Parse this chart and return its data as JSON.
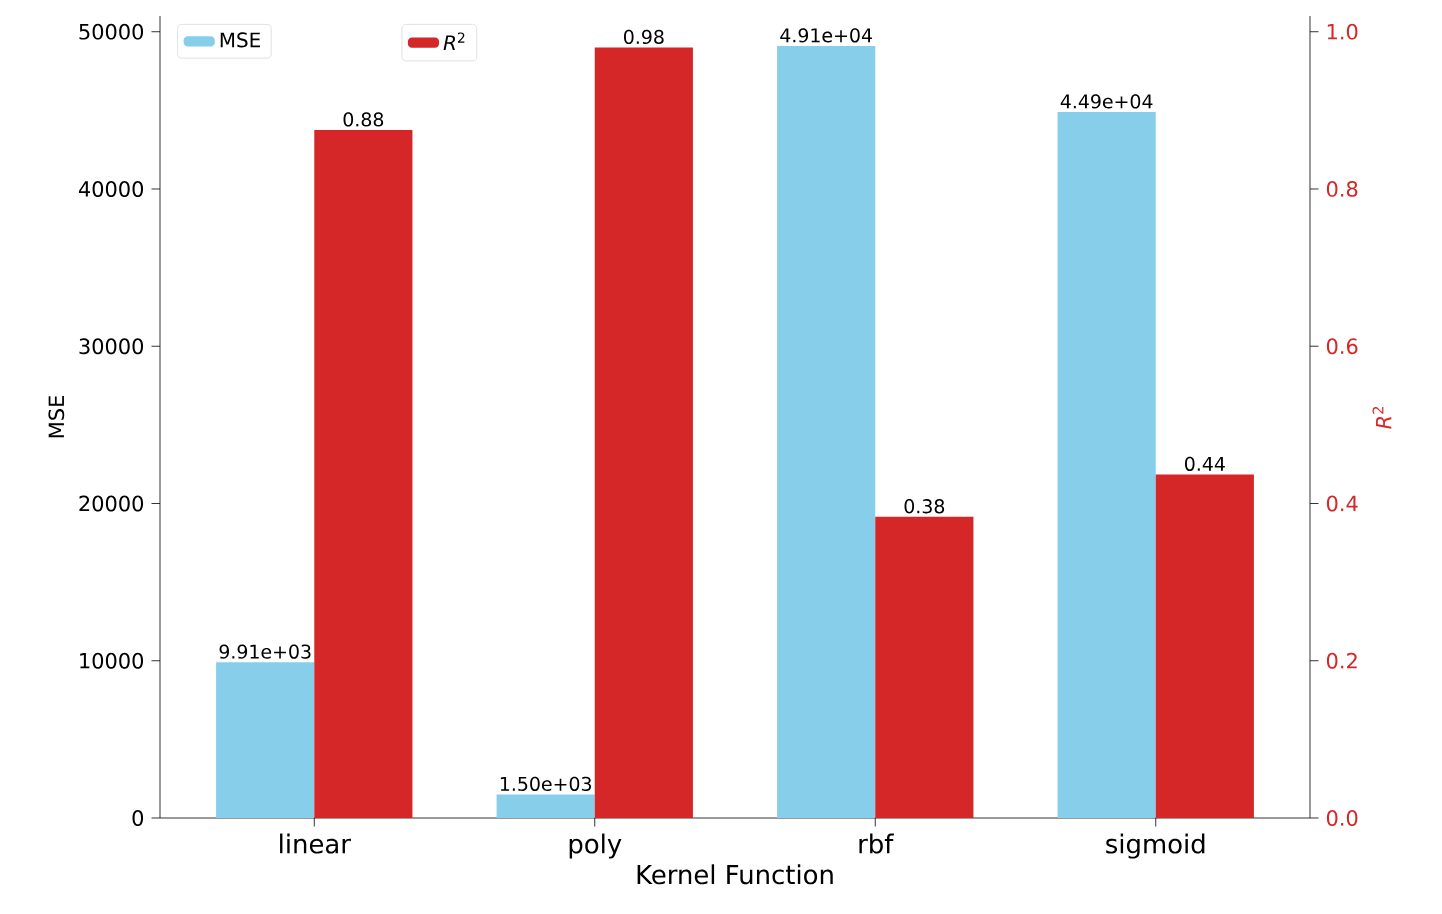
{
  "chart_data": {
    "type": "bar",
    "xlabel": "Kernel Function",
    "ylabel": "MSE",
    "y2label": "*R*$^{2}$",
    "categories": [
      "linear",
      "poly",
      "rbf",
      "sigmoid"
    ],
    "series": [
      {
        "name": "MSE",
        "color": "#87ceeb",
        "values": [
          9910,
          1500,
          49100,
          44900
        ],
        "value_labels": [
          "9.91e+03",
          "1.50e+03",
          "4.91e+04",
          "4.49e+04"
        ]
      },
      {
        "name": "*R*$^{2}$",
        "color": "#d62728",
        "axis": "y2",
        "values": [
          0.875,
          0.98,
          0.383,
          0.437
        ],
        "value_labels": [
          "0.88",
          "0.98",
          "0.38",
          "0.44"
        ]
      }
    ],
    "ylim": [
      0,
      51000
    ],
    "yticks": [
      0,
      10000,
      20000,
      30000,
      40000,
      50000
    ],
    "y2lim": [
      0,
      1.02
    ],
    "y2ticks": [
      {
        "value": 0,
        "label": "0.0"
      },
      0.2,
      0.4,
      0.6,
      0.8,
      {
        "value": 1,
        "label": "1.0"
      }
    ],
    "legend": "top left"
  }
}
